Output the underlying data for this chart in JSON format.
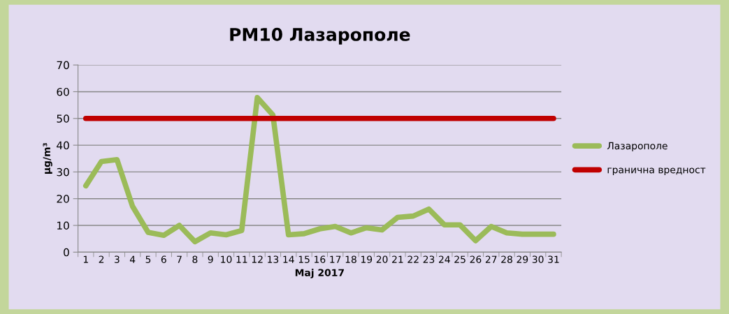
{
  "chart_data": {
    "type": "line",
    "title": "PM10 Лазарополе",
    "xlabel": "Мај 2017",
    "ylabel": "μg/m³",
    "categories": [
      "1",
      "2",
      "3",
      "4",
      "5",
      "6",
      "7",
      "8",
      "9",
      "10",
      "11",
      "12",
      "13",
      "14",
      "15",
      "16",
      "17",
      "18",
      "19",
      "20",
      "21",
      "22",
      "23",
      "24",
      "25",
      "26",
      "27",
      "28",
      "29",
      "30",
      "31"
    ],
    "series": [
      {
        "name": "Лазарополе",
        "color": "#9bbb59",
        "values": [
          24.8,
          33.9,
          34.6,
          17.1,
          7.4,
          6.3,
          10,
          3.9,
          7.2,
          6.5,
          8.1,
          57.8,
          51.3,
          6.5,
          6.9,
          8.7,
          9.6,
          7.2,
          9.1,
          8.3,
          13,
          13.5,
          16.1,
          10.2,
          10.2,
          4.3,
          9.6,
          7.2,
          6.7,
          6.7,
          6.7
        ]
      },
      {
        "name": "гранична вредност",
        "color": "#c00000",
        "values": [
          50,
          50,
          50,
          50,
          50,
          50,
          50,
          50,
          50,
          50,
          50,
          50,
          50,
          50,
          50,
          50,
          50,
          50,
          50,
          50,
          50,
          50,
          50,
          50,
          50,
          50,
          50,
          50,
          50,
          50,
          50
        ]
      }
    ],
    "ylim": [
      0,
      70
    ],
    "yticks": [
      0,
      10,
      20,
      30,
      40,
      50,
      60,
      70
    ],
    "grid": "y",
    "legend": "right",
    "marker": "none",
    "line_style": "solid"
  }
}
